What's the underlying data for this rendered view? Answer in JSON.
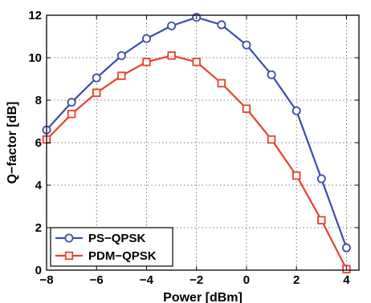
{
  "chart_data": {
    "type": "line",
    "title": "",
    "xlabel": "Power  [dBm]",
    "ylabel": "Q−factor  [dB]",
    "xlim": [
      -8,
      4.5
    ],
    "ylim": [
      0,
      12
    ],
    "xticks": [
      -8,
      -6,
      -4,
      -2,
      0,
      2,
      4
    ],
    "yticks": [
      0,
      2,
      4,
      6,
      8,
      10,
      12
    ],
    "xtick_labels": [
      "−8",
      "−6",
      "−4",
      "−2",
      "0",
      "2",
      "4"
    ],
    "ytick_labels": [
      "0",
      "2",
      "4",
      "6",
      "8",
      "10",
      "12"
    ],
    "grid": true,
    "legend_position": "bottom-left",
    "series": [
      {
        "name": "PS−QPSK",
        "color": "#3a4fa8",
        "marker": "circle",
        "x": [
          -8,
          -7,
          -6,
          -5,
          -4,
          -3,
          -2,
          -1,
          0,
          1,
          2,
          3,
          4
        ],
        "y": [
          6.6,
          7.9,
          9.05,
          10.1,
          10.9,
          11.5,
          11.9,
          11.55,
          10.6,
          9.2,
          7.5,
          4.3,
          1.05
        ]
      },
      {
        "name": "PDM−QPSK",
        "color": "#e8402a",
        "marker": "square",
        "x": [
          -8,
          -7,
          -6,
          -5,
          -4,
          -3,
          -2,
          -1,
          0,
          1,
          2,
          3,
          4
        ],
        "y": [
          6.15,
          7.35,
          8.35,
          9.15,
          9.8,
          10.1,
          9.8,
          8.8,
          7.6,
          6.15,
          4.45,
          2.35,
          0.05
        ]
      }
    ]
  }
}
